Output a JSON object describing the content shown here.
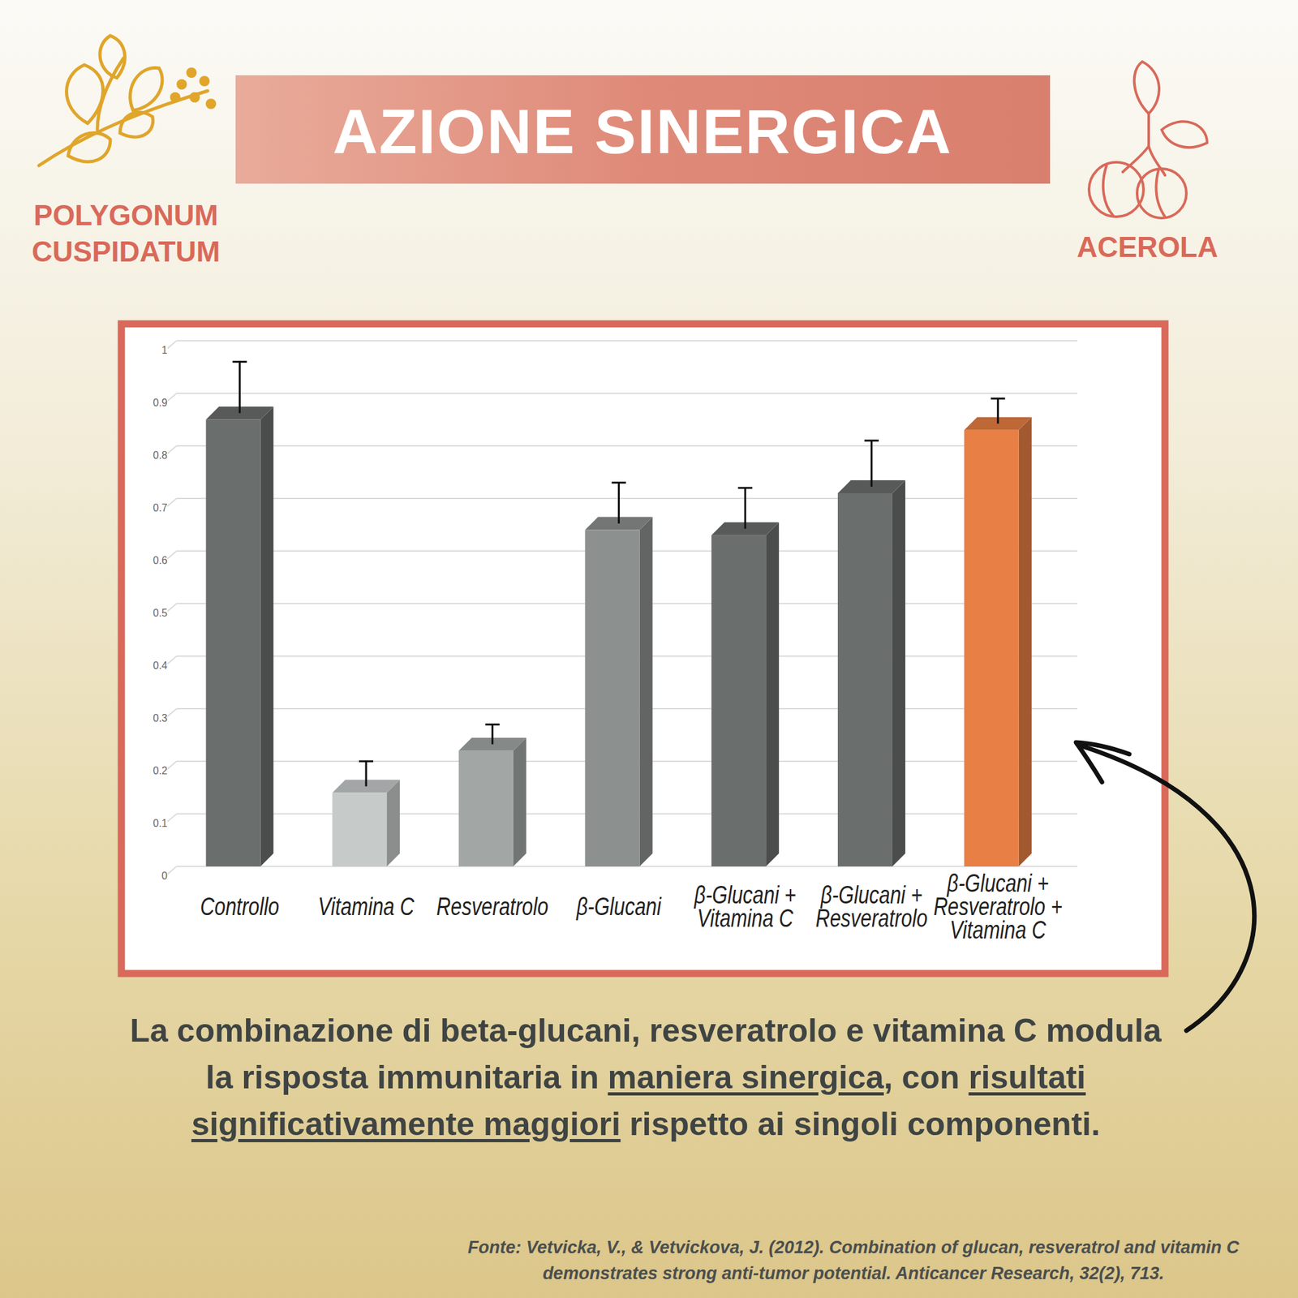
{
  "chart_data": {
    "type": "bar",
    "categories": [
      "Controllo",
      "Vitamina C",
      "Resveratrolo",
      "β-Glucani",
      "β-Glucani + Vitamina C",
      "β-Glucani + Resveratrolo",
      "β-Glucani + Resveratrolo + Vitamina C"
    ],
    "values": [
      0.85,
      0.14,
      0.22,
      0.64,
      0.63,
      0.71,
      0.83
    ],
    "errors": [
      0.11,
      0.06,
      0.05,
      0.09,
      0.09,
      0.1,
      0.06
    ],
    "colors": [
      "#6a6e6d",
      "#c6cbca",
      "#a2a7a6",
      "#8c908f",
      "#6a6e6d",
      "#6a6e6d",
      "#e87f44"
    ],
    "ylim": [
      0,
      1
    ],
    "yticks": [
      0,
      0.1,
      0.2,
      0.3,
      0.4,
      0.5,
      0.6,
      0.7,
      0.8,
      0.9,
      1
    ],
    "grid": true
  },
  "header": {
    "title": "AZIONE SINERGICA",
    "left_label": [
      "POLYGONUM",
      "CUSPIDATUM"
    ],
    "right_label": "ACEROLA"
  },
  "caption": [
    "La combinazione di beta-glucani, resveratrolo e vitamina C modula la risposta immunitaria in ",
    "maniera sinergica",
    ", con ",
    "risultati significativamente maggiori",
    " rispetto ai singoli componenti."
  ],
  "source": [
    "Fonte: Vetvicka, V., & Vetvickova, J. (2012). Combination of glucan, resveratrol and vitamin C",
    "demonstrates strong anti-tumor potential. Anticancer Research, 32(2), 713."
  ]
}
